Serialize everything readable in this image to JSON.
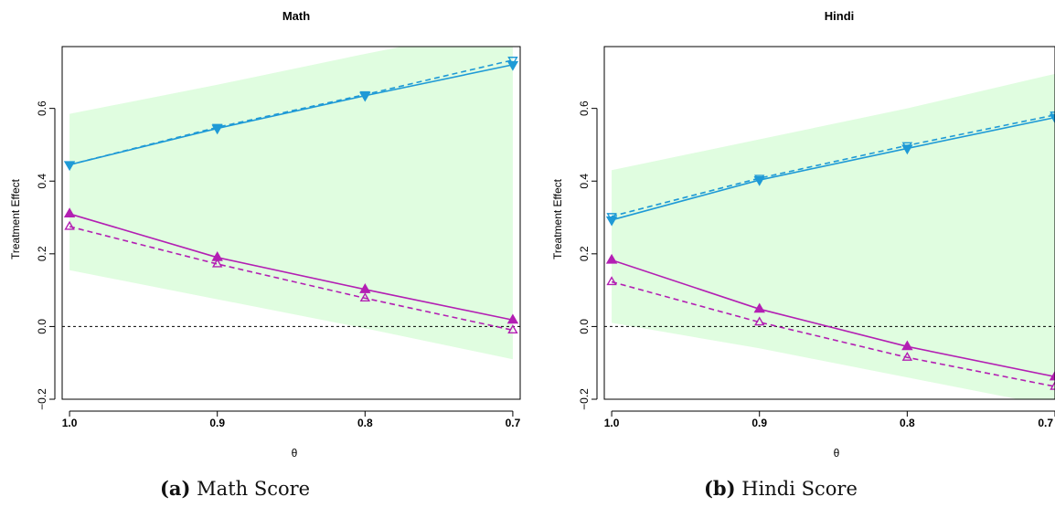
{
  "chart_data": [
    {
      "type": "line",
      "title": "Math",
      "xlabel": "θ",
      "ylabel": "Treatment Effect",
      "x": [
        1.0,
        0.9,
        0.8,
        0.7
      ],
      "x_tick_labels": [
        "1.0",
        "0.9",
        "0.8",
        "0.7"
      ],
      "y_ticks": [
        -0.2,
        0.0,
        0.2,
        0.4,
        0.6
      ],
      "y_tick_labels": [
        "−0.2",
        "0.0",
        "0.2",
        "0.4",
        "0.6"
      ],
      "xlim": [
        1.005,
        0.695
      ],
      "ylim": [
        -0.2,
        0.77
      ],
      "reference_line": 0.0,
      "band": {
        "lower": [
          0.155,
          0.075,
          -0.005,
          -0.09
        ],
        "upper": [
          0.585,
          0.665,
          0.75,
          0.83
        ]
      },
      "series": [
        {
          "values": [
            0.445,
            0.545,
            0.635,
            0.72
          ],
          "color": "#1f9ad6",
          "style": "solid",
          "marker": "filled-triangle-down"
        },
        {
          "values": [
            0.445,
            0.548,
            0.638,
            0.733
          ],
          "color": "#1f9ad6",
          "style": "dashed",
          "marker": "open-triangle-down"
        },
        {
          "values": [
            0.31,
            0.19,
            0.102,
            0.018
          ],
          "color": "#b31fb3",
          "style": "solid",
          "marker": "filled-triangle-up"
        },
        {
          "values": [
            0.275,
            0.172,
            0.078,
            -0.01
          ],
          "color": "#b31fb3",
          "style": "dashed",
          "marker": "open-triangle-up"
        }
      ]
    },
    {
      "type": "line",
      "title": "Hindi",
      "xlabel": "θ",
      "ylabel": "Treatment Effect",
      "x": [
        1.0,
        0.9,
        0.8,
        0.7
      ],
      "x_tick_labels": [
        "1.0",
        "0.9",
        "0.8",
        "0.7"
      ],
      "y_ticks": [
        -0.2,
        0.0,
        0.2,
        0.4,
        0.6
      ],
      "y_tick_labels": [
        "−0.2",
        "0.0",
        "0.2",
        "0.4",
        "0.6"
      ],
      "xlim": [
        1.005,
        0.7
      ],
      "ylim": [
        -0.2,
        0.77
      ],
      "reference_line": 0.0,
      "band": {
        "lower": [
          0.01,
          -0.06,
          -0.14,
          -0.22
        ],
        "upper": [
          0.43,
          0.515,
          0.6,
          0.695
        ]
      },
      "series": [
        {
          "values": [
            0.293,
            0.403,
            0.49,
            0.575
          ],
          "color": "#1f9ad6",
          "style": "solid",
          "marker": "filled-triangle-down"
        },
        {
          "values": [
            0.303,
            0.408,
            0.498,
            0.582
          ],
          "color": "#1f9ad6",
          "style": "dashed",
          "marker": "open-triangle-down"
        },
        {
          "values": [
            0.183,
            0.048,
            -0.055,
            -0.138
          ],
          "color": "#b31fb3",
          "style": "solid",
          "marker": "filled-triangle-up"
        },
        {
          "values": [
            0.123,
            0.012,
            -0.085,
            -0.165
          ],
          "color": "#b31fb3",
          "style": "dashed",
          "marker": "open-triangle-up"
        }
      ]
    }
  ],
  "captions": {
    "a": {
      "label": "(a)",
      "text": "Math Score"
    },
    "b": {
      "label": "(b)",
      "text": "Hindi Score"
    }
  },
  "colors": {
    "band_fill": "#e0fde0",
    "zero_line": "#000000"
  }
}
